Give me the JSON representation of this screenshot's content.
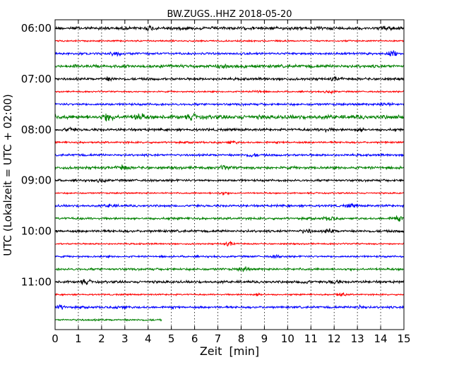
{
  "chart_data": {
    "type": "line",
    "title": "BW.ZUGS..HHZ 2018-05-20",
    "xlabel": "Zeit  [min]",
    "ylabel": "UTC (Lokalzeit = UTC + 02:00)",
    "xlim": [
      0,
      15
    ],
    "x_ticks": [
      "0",
      "1",
      "2",
      "3",
      "4",
      "5",
      "6",
      "7",
      "8",
      "9",
      "10",
      "11",
      "12",
      "13",
      "14",
      "15"
    ],
    "y_tick_labels": [
      "06:00",
      "07:00",
      "08:00",
      "09:00",
      "10:00",
      "11:00"
    ],
    "grid": "vertical dotted at each minute",
    "trace_interval_min": 15,
    "trace_colors": [
      "#000000",
      "#ff0000",
      "#0000ff",
      "#008000"
    ],
    "series": [
      {
        "start": "06:00",
        "end_min": 15,
        "amplitude": 2.5,
        "bursts": [
          [
            4.1,
            3
          ],
          [
            14.3,
            2.5
          ]
        ]
      },
      {
        "start": "06:15",
        "end_min": 15,
        "amplitude": 1.2,
        "bursts": []
      },
      {
        "start": "06:30",
        "end_min": 15,
        "amplitude": 1.8,
        "bursts": [
          [
            2.6,
            3
          ],
          [
            14.5,
            3.5
          ]
        ]
      },
      {
        "start": "06:45",
        "end_min": 15,
        "amplitude": 2.5,
        "bursts": [
          [
            7.2,
            2
          ]
        ]
      },
      {
        "start": "07:00",
        "end_min": 15,
        "amplitude": 2.0,
        "bursts": [
          [
            2.3,
            2.5
          ],
          [
            12.1,
            2.5
          ]
        ]
      },
      {
        "start": "07:15",
        "end_min": 15,
        "amplitude": 1.2,
        "bursts": [
          [
            8.7,
            2
          ],
          [
            11.8,
            2
          ]
        ]
      },
      {
        "start": "07:30",
        "end_min": 15,
        "amplitude": 1.8,
        "bursts": [
          [
            14.2,
            3
          ]
        ]
      },
      {
        "start": "07:45",
        "end_min": 15,
        "amplitude": 3.2,
        "bursts": [
          [
            2.3,
            5
          ],
          [
            3.6,
            5
          ],
          [
            5.9,
            3
          ]
        ]
      },
      {
        "start": "08:00",
        "end_min": 15,
        "amplitude": 2.0,
        "bursts": [
          [
            0.6,
            3
          ],
          [
            11.6,
            3
          ],
          [
            13.1,
            2.5
          ]
        ]
      },
      {
        "start": "08:15",
        "end_min": 15,
        "amplitude": 1.5,
        "bursts": [
          [
            7.6,
            2.5
          ]
        ]
      },
      {
        "start": "08:30",
        "end_min": 15,
        "amplitude": 1.8,
        "bursts": [
          [
            8.5,
            2.5
          ]
        ]
      },
      {
        "start": "08:45",
        "end_min": 15,
        "amplitude": 2.2,
        "bursts": [
          [
            2.9,
            3.5
          ],
          [
            7.3,
            2
          ]
        ]
      },
      {
        "start": "09:00",
        "end_min": 15,
        "amplitude": 1.8,
        "bursts": [
          [
            2.0,
            2.5
          ]
        ]
      },
      {
        "start": "09:15",
        "end_min": 15,
        "amplitude": 1.2,
        "bursts": [
          [
            7.2,
            2
          ]
        ]
      },
      {
        "start": "09:30",
        "end_min": 15,
        "amplitude": 1.8,
        "bursts": [
          [
            2.4,
            2.5
          ],
          [
            12.7,
            2.5
          ]
        ]
      },
      {
        "start": "09:45",
        "end_min": 15,
        "amplitude": 1.8,
        "bursts": [
          [
            11.8,
            3
          ],
          [
            14.7,
            4
          ]
        ]
      },
      {
        "start": "10:00",
        "end_min": 15,
        "amplitude": 2.0,
        "bursts": [
          [
            10.8,
            2.5
          ],
          [
            11.8,
            2.5
          ]
        ]
      },
      {
        "start": "10:15",
        "end_min": 15,
        "amplitude": 1.2,
        "bursts": [
          [
            7.5,
            3
          ]
        ]
      },
      {
        "start": "10:30",
        "end_min": 15,
        "amplitude": 1.5,
        "bursts": [
          [
            9.5,
            2
          ]
        ]
      },
      {
        "start": "10:45",
        "end_min": 15,
        "amplitude": 1.8,
        "bursts": [
          [
            8.1,
            3
          ]
        ]
      },
      {
        "start": "11:00",
        "end_min": 15,
        "amplitude": 2.0,
        "bursts": [
          [
            1.3,
            3
          ],
          [
            10.7,
            2.5
          ],
          [
            12.0,
            2.5
          ]
        ]
      },
      {
        "start": "11:15",
        "end_min": 15,
        "amplitude": 1.2,
        "bursts": [
          [
            8.8,
            2
          ],
          [
            12.3,
            2.5
          ]
        ]
      },
      {
        "start": "11:30",
        "end_min": 15,
        "amplitude": 1.8,
        "bursts": [
          [
            0.2,
            3.5
          ],
          [
            2.9,
            2.5
          ],
          [
            13.1,
            2.5
          ]
        ]
      },
      {
        "start": "11:45",
        "end_min": 4.6,
        "amplitude": 1.5,
        "bursts": []
      }
    ]
  }
}
